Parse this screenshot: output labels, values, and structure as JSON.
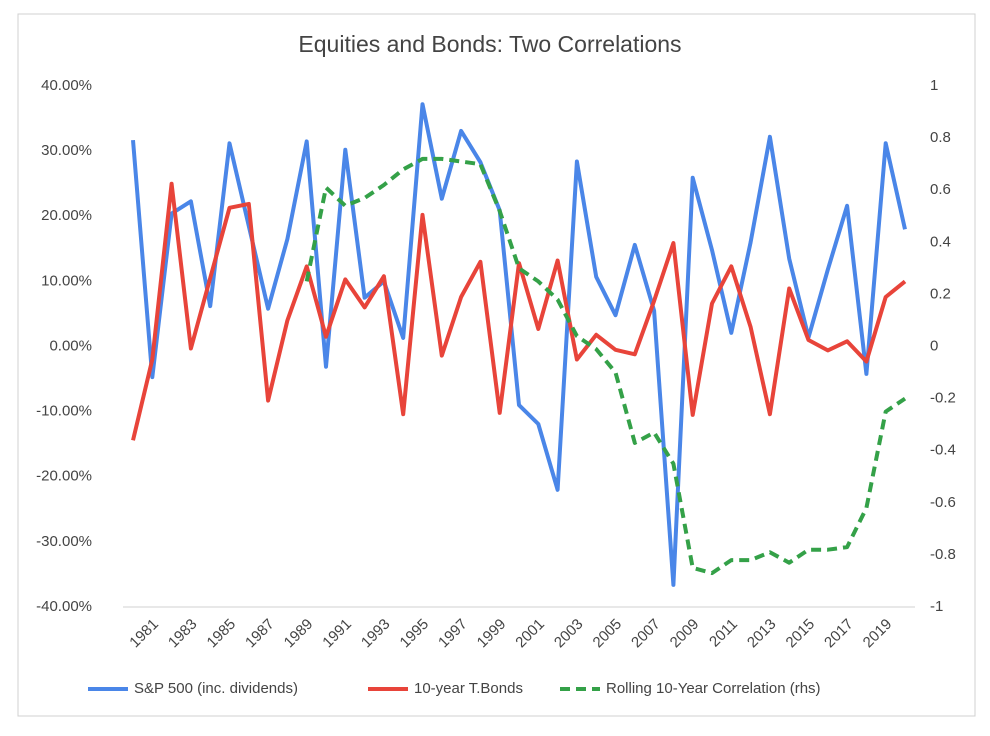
{
  "chart_data": {
    "type": "line",
    "title": "Equities and Bonds: Two Correlations",
    "categories": [
      null,
      "1981",
      null,
      "1983",
      null,
      "1985",
      null,
      "1987",
      null,
      "1989",
      null,
      "1991",
      null,
      "1993",
      null,
      "1995",
      null,
      "1997",
      null,
      "1999",
      null,
      "2001",
      null,
      "2003",
      null,
      "2005",
      null,
      "2007",
      null,
      "2009",
      null,
      "2011",
      null,
      "2013",
      null,
      "2015",
      null,
      "2017",
      null,
      "2019",
      null
    ],
    "series": [
      {
        "name": "S&P 500 (inc. dividends)",
        "color": "#4a86e8",
        "values": [
          31.7,
          -4.7,
          20.4,
          22.3,
          6.2,
          31.2,
          18.5,
          5.8,
          16.5,
          31.5,
          -3.1,
          30.2,
          7.5,
          10.0,
          1.3,
          37.2,
          22.7,
          33.1,
          28.3,
          20.9,
          -9.0,
          -11.9,
          -22.0,
          28.4,
          10.7,
          4.8,
          15.6,
          5.5,
          -36.6,
          25.9,
          14.8,
          2.1,
          16.0,
          32.2,
          13.5,
          1.4,
          11.8,
          21.6,
          -4.2,
          31.2,
          18.0
        ]
      },
      {
        "name": "10-year T.Bonds",
        "color": "#e8443a",
        "values": [
          -14.4,
          -2.0,
          25.0,
          -0.3,
          10.5,
          21.3,
          21.9,
          -8.3,
          4.0,
          12.3,
          1.5,
          10.3,
          6.0,
          10.8,
          -10.4,
          20.2,
          -1.4,
          7.6,
          13.0,
          -10.2,
          12.8,
          2.7,
          13.2,
          -2.0,
          1.8,
          -0.5,
          -1.2,
          7.0,
          15.9,
          -10.5,
          6.6,
          12.3,
          3.0,
          -10.4,
          8.9,
          1.0,
          -0.6,
          0.8,
          -2.3,
          7.6,
          10.0
        ]
      },
      {
        "name": "Rolling 10-Year Correlation (rhs)",
        "color": "#34a148",
        "axis": "y2",
        "dashed": true,
        "values": [
          null,
          null,
          null,
          null,
          null,
          null,
          null,
          null,
          null,
          0.25,
          0.61,
          0.54,
          0.57,
          0.62,
          0.68,
          0.72,
          0.72,
          0.71,
          0.7,
          0.52,
          0.3,
          0.25,
          0.18,
          0.04,
          -0.01,
          -0.1,
          -0.37,
          -0.33,
          -0.45,
          -0.85,
          -0.87,
          -0.82,
          -0.82,
          -0.79,
          -0.83,
          -0.78,
          -0.78,
          -0.77,
          -0.62,
          -0.25,
          -0.2
        ]
      }
    ],
    "ylim": [
      -40,
      40
    ],
    "yticks": [
      {
        "value": -40,
        "label": "-40.00%"
      },
      {
        "value": -30,
        "label": "-30.00%"
      },
      {
        "value": -20,
        "label": "-20.00%"
      },
      {
        "value": -10,
        "label": "-10.00%"
      },
      {
        "value": 0,
        "label": "0.00%"
      },
      {
        "value": 10,
        "label": "10.00%"
      },
      {
        "value": 20,
        "label": "20.00%"
      },
      {
        "value": 30,
        "label": "30.00%"
      },
      {
        "value": 40,
        "label": "40.00%"
      }
    ],
    "y2lim": [
      -1,
      1
    ],
    "y2ticks": [
      -1,
      -0.8,
      -0.6,
      -0.4,
      -0.2,
      0,
      0.2,
      0.4,
      0.6,
      0.8,
      1
    ],
    "grid": false,
    "legend": "bottom"
  }
}
